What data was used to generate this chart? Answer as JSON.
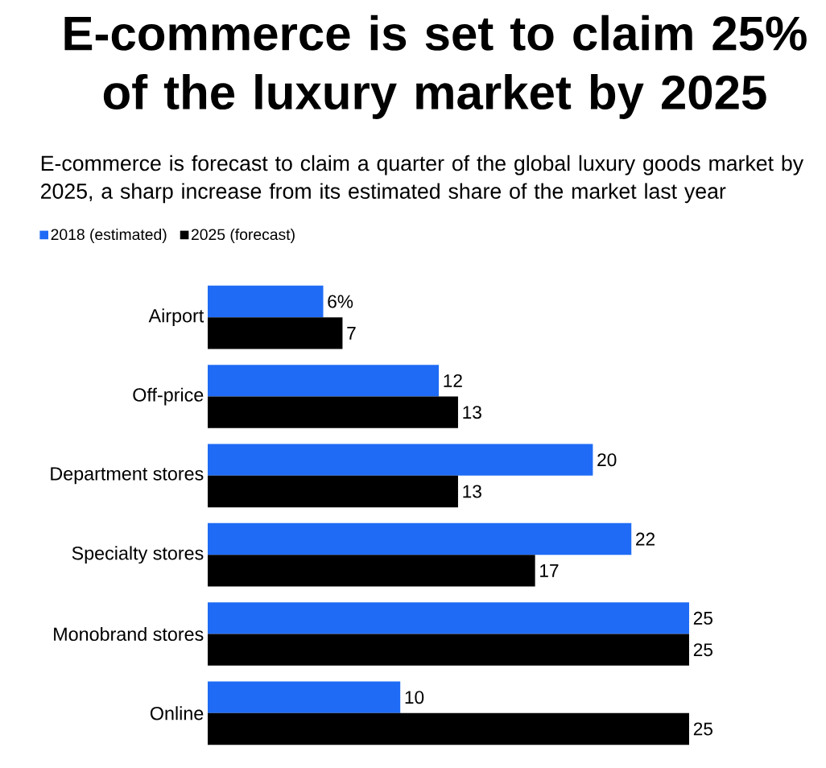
{
  "chart_data": {
    "type": "bar",
    "orientation": "horizontal",
    "title": "E-commerce is set to claim 25% of the luxury market by 2025",
    "subtitle": "E-commerce is forecast to claim a quarter of the global luxury goods market by 2025, a sharp increase from its estimated share of the market last year",
    "categories": [
      "Airport",
      "Off-price",
      "Department stores",
      "Specialty stores",
      "Monobrand stores",
      "Online"
    ],
    "series": [
      {
        "name": "2018 (estimated)",
        "color": "#1f6bf5",
        "values": [
          6,
          12,
          20,
          22,
          25,
          10
        ],
        "value_labels": [
          "6%",
          "12",
          "20",
          "22",
          "25",
          "10"
        ]
      },
      {
        "name": "2025 (forecast)",
        "color": "#000000",
        "values": [
          7,
          13,
          13,
          17,
          25,
          25
        ],
        "value_labels": [
          "7",
          "13",
          "13",
          "17",
          "25",
          "25"
        ]
      }
    ],
    "legend": "top left"
  }
}
